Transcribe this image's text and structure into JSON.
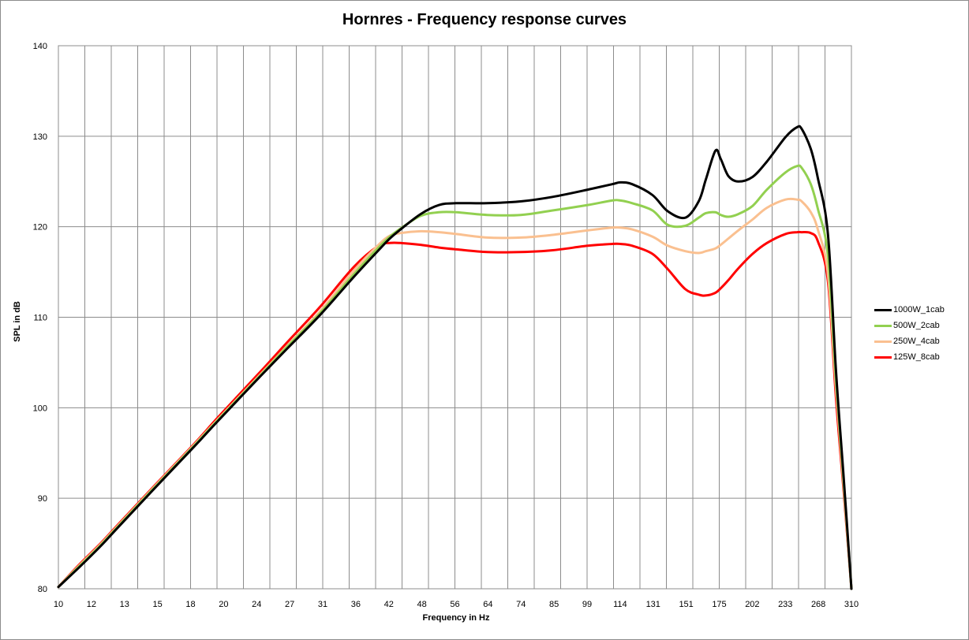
{
  "chart_data": {
    "type": "line",
    "title": "Hornres - Frequency response curves",
    "xlabel": "Frequency in Hz",
    "ylabel": "SPL in dB",
    "x_scale": "log",
    "xlim": [
      10,
      310
    ],
    "ylim": [
      80,
      140
    ],
    "y_ticks": [
      80,
      90,
      100,
      110,
      120,
      130,
      140
    ],
    "x_tick_labels": [
      "10",
      "12",
      "13",
      "15",
      "18",
      "20",
      "24",
      "27",
      "31",
      "36",
      "42",
      "48",
      "56",
      "64",
      "74",
      "85",
      "99",
      "114",
      "131",
      "151",
      "175",
      "202",
      "233",
      "268",
      "310"
    ],
    "grid": true,
    "legend_position": "right",
    "x": [
      10,
      11,
      12,
      13,
      15,
      18,
      20,
      24,
      27,
      31,
      36,
      40,
      42,
      44,
      48,
      52,
      56,
      64,
      74,
      85,
      99,
      110,
      114,
      120,
      131,
      140,
      151,
      160,
      165,
      172,
      176,
      182,
      190,
      202,
      215,
      233,
      245,
      250,
      260,
      268,
      280,
      290,
      300,
      310
    ],
    "series": [
      {
        "name": "1000W_1cab",
        "color": "#000000",
        "values": [
          80.2,
          82.5,
          84.7,
          86.9,
          90.8,
          95.7,
          98.6,
          103.5,
          106.6,
          110.2,
          114.5,
          117.4,
          118.7,
          119.7,
          121.4,
          122.4,
          122.6,
          122.6,
          122.8,
          123.3,
          124.1,
          124.7,
          124.9,
          124.7,
          123.5,
          121.7,
          121.0,
          122.8,
          125.2,
          128.4,
          127.5,
          125.6,
          125.0,
          125.5,
          127.2,
          129.9,
          131.0,
          130.8,
          128.6,
          125.4,
          119.2,
          104.0,
          92.0,
          80.0
        ]
      },
      {
        "name": "500W_2cab",
        "color": "#92d050",
        "values": [
          80.2,
          82.6,
          84.8,
          87.0,
          90.9,
          95.8,
          98.7,
          103.6,
          106.8,
          110.4,
          114.8,
          117.7,
          118.9,
          119.8,
          121.2,
          121.6,
          121.6,
          121.3,
          121.3,
          121.8,
          122.4,
          122.9,
          122.9,
          122.6,
          121.8,
          120.2,
          120.1,
          121.0,
          121.5,
          121.6,
          121.3,
          121.1,
          121.4,
          122.3,
          124.1,
          126.0,
          126.7,
          126.5,
          124.7,
          122.0,
          116.8,
          103.0,
          91.5,
          80.0
        ]
      },
      {
        "name": "250W_4cab",
        "color": "#fac090",
        "values": [
          80.2,
          82.7,
          84.9,
          87.1,
          91.0,
          95.9,
          98.8,
          103.7,
          106.9,
          110.6,
          115.2,
          118.0,
          119.0,
          119.3,
          119.5,
          119.4,
          119.2,
          118.8,
          118.8,
          119.1,
          119.6,
          119.9,
          119.9,
          119.7,
          118.9,
          117.9,
          117.3,
          117.1,
          117.3,
          117.6,
          118.0,
          118.7,
          119.6,
          120.8,
          122.1,
          123.0,
          123.0,
          122.8,
          121.6,
          119.7,
          114.8,
          102.0,
          91.0,
          80.0
        ]
      },
      {
        "name": "125W_8cab",
        "color": "#ff0000",
        "values": [
          80.2,
          82.8,
          85.0,
          87.2,
          91.1,
          96.0,
          99.0,
          104.0,
          107.3,
          111.1,
          115.6,
          117.9,
          118.2,
          118.2,
          118.0,
          117.7,
          117.5,
          117.2,
          117.2,
          117.4,
          117.9,
          118.1,
          118.1,
          117.9,
          117.0,
          115.3,
          113.1,
          112.5,
          112.4,
          112.7,
          113.2,
          114.1,
          115.4,
          117.0,
          118.2,
          119.2,
          119.4,
          119.4,
          119.3,
          118.4,
          114.0,
          101.0,
          90.5,
          80.0
        ]
      }
    ]
  }
}
